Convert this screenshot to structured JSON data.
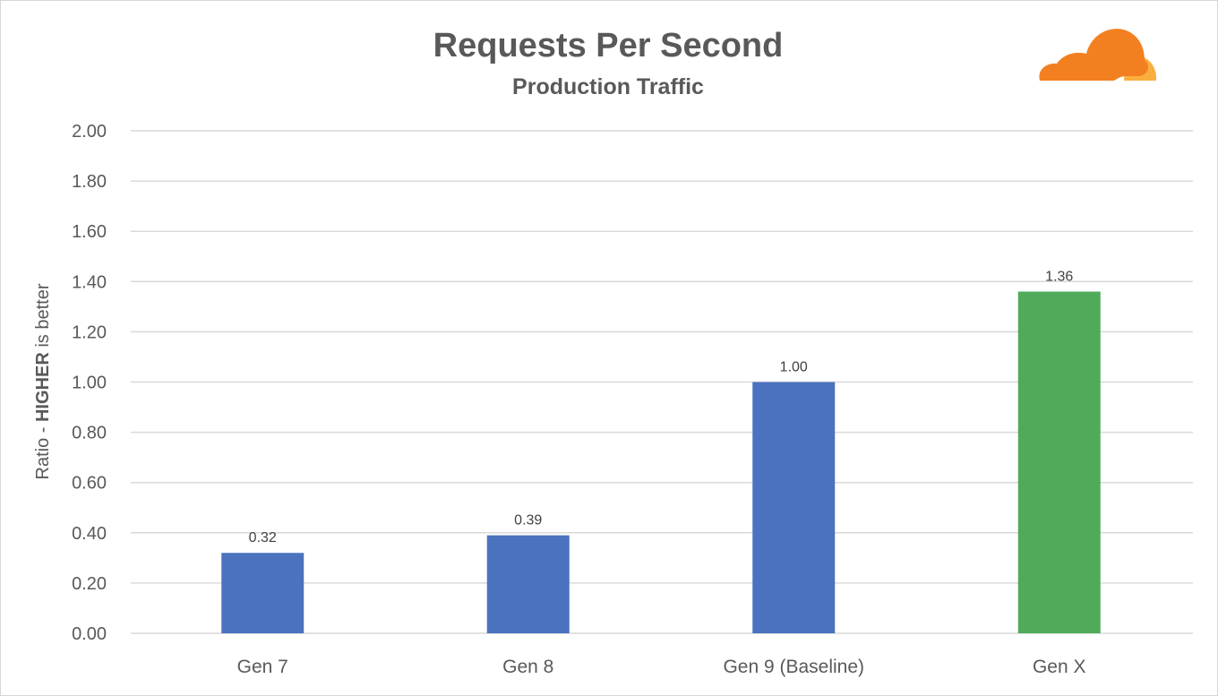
{
  "chart_data": {
    "type": "bar",
    "title": "Requests Per Second",
    "subtitle": "Production Traffic",
    "ylabel_prefix": "Ratio - ",
    "ylabel_emphasis": "HIGHER",
    "ylabel_suffix": " is better",
    "xlabel": "",
    "categories": [
      "Gen 7",
      "Gen 8",
      "Gen 9 (Baseline)",
      "Gen X"
    ],
    "values": [
      0.32,
      0.39,
      1.0,
      1.36
    ],
    "data_labels": [
      "0.32",
      "0.39",
      "1.00",
      "1.36"
    ],
    "bar_colors": [
      "#4a72be",
      "#4a72be",
      "#4a72be",
      "#4fab5a"
    ],
    "ylim": [
      0,
      2
    ],
    "yticks": [
      0,
      0.2,
      0.4,
      0.6,
      0.8,
      1.0,
      1.2,
      1.4,
      1.6,
      1.8,
      2.0
    ],
    "ytick_labels": [
      "0.00",
      "0.20",
      "0.40",
      "0.60",
      "0.80",
      "1.00",
      "1.20",
      "1.40",
      "1.60",
      "1.80",
      "2.00"
    ],
    "grid": true,
    "legend": "none"
  },
  "logo": {
    "icon": "cloudflare-cloud-icon",
    "colors": [
      "#f38020",
      "#faae40"
    ]
  }
}
